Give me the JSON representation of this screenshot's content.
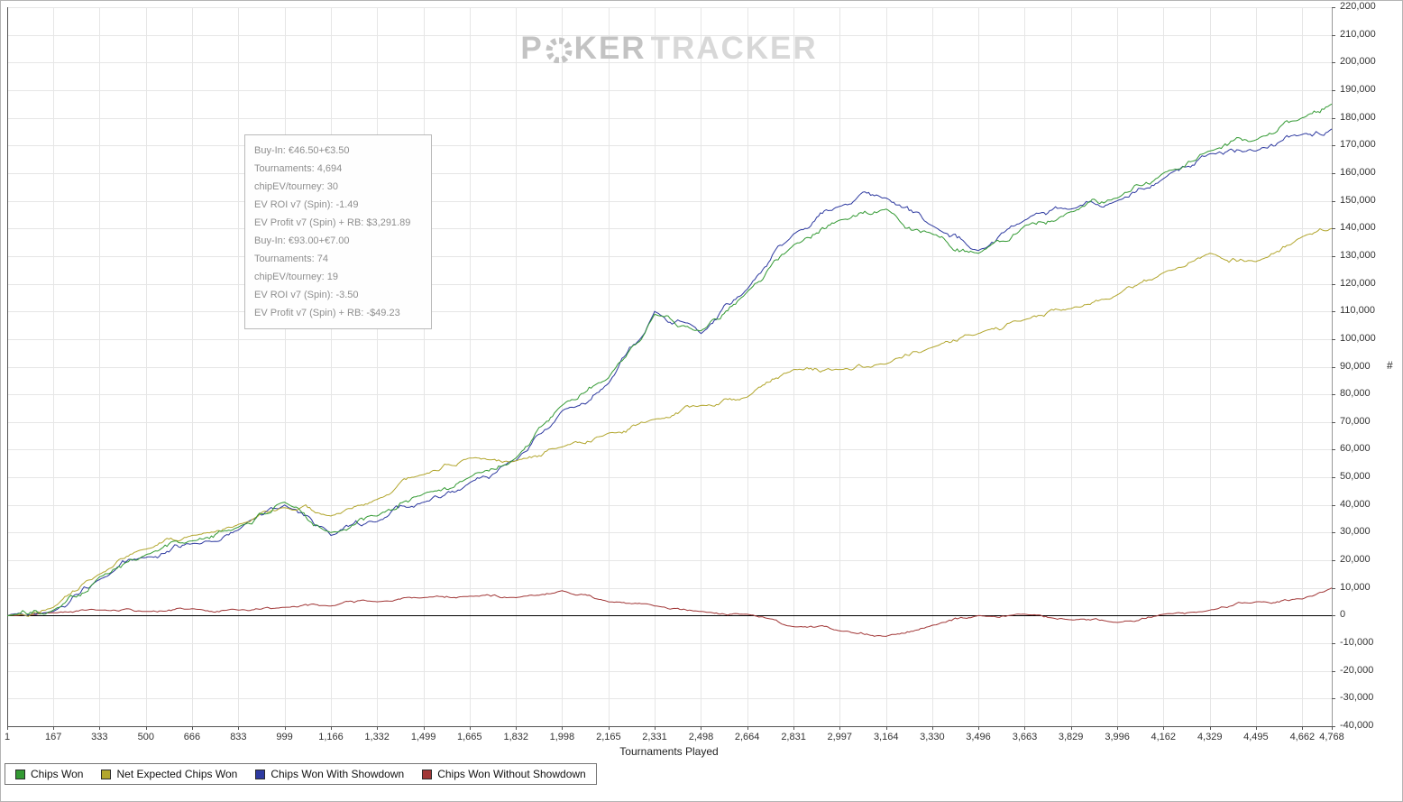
{
  "watermark": {
    "p": "P",
    "ker": "KER",
    "tracker": "TRACKER"
  },
  "tooltip": {
    "lines": [
      "Buy-In: €46.50+€3.50",
      "Tournaments: 4,694",
      "chipEV/tourney: 30",
      "EV ROI v7 (Spin): -1.49",
      "EV Profit v7 (Spin) + RB: $3,291.89",
      "Buy-In: €93.00+€7.00",
      "Tournaments: 74",
      "chipEV/tourney: 19",
      "EV ROI v7 (Spin): -3.50",
      "EV Profit v7 (Spin) + RB: -$49.23"
    ]
  },
  "chart_data": {
    "type": "line",
    "title": "",
    "xlabel": "Tournaments Played",
    "ylabel": "#",
    "xlim": [
      1,
      4768
    ],
    "ylim": [
      -40000,
      220000
    ],
    "grid": true,
    "legend_position": "bottom-left",
    "x_ticks": [
      1,
      167,
      333,
      500,
      666,
      833,
      999,
      1166,
      1332,
      1499,
      1665,
      1832,
      1998,
      2165,
      2331,
      2498,
      2664,
      2831,
      2997,
      3164,
      3330,
      3496,
      3663,
      3829,
      3996,
      4162,
      4329,
      4495,
      4662,
      4768
    ],
    "y_ticks": [
      -40000,
      -30000,
      -20000,
      -10000,
      0,
      10000,
      20000,
      30000,
      40000,
      50000,
      60000,
      70000,
      80000,
      90000,
      100000,
      110000,
      120000,
      130000,
      140000,
      150000,
      160000,
      170000,
      180000,
      190000,
      200000,
      210000,
      220000
    ],
    "x": [
      1,
      167,
      333,
      500,
      666,
      833,
      999,
      1166,
      1332,
      1499,
      1665,
      1832,
      1998,
      2165,
      2331,
      2498,
      2664,
      2831,
      2997,
      3164,
      3330,
      3496,
      3663,
      3829,
      3996,
      4162,
      4329,
      4495,
      4662,
      4768
    ],
    "series": [
      {
        "name": "Chips Won",
        "color": "#349a34",
        "values": [
          0,
          2000,
          14000,
          22000,
          27000,
          32000,
          41000,
          30000,
          36000,
          44000,
          50000,
          57000,
          76000,
          86000,
          109000,
          103000,
          117000,
          134000,
          143000,
          147000,
          138000,
          131000,
          141000,
          146000,
          151000,
          160000,
          168000,
          172000,
          180000,
          185000
        ]
      },
      {
        "name": "Net Expected Chips Won",
        "color": "#b2a62e",
        "values": [
          0,
          3000,
          15000,
          24000,
          29000,
          33000,
          39000,
          36000,
          42000,
          51000,
          57000,
          56000,
          61000,
          66000,
          71000,
          76000,
          79000,
          89000,
          89000,
          91000,
          97000,
          102000,
          107000,
          111000,
          116000,
          124000,
          131000,
          128000,
          137000,
          140000
        ]
      },
      {
        "name": "Chips Won With Showdown",
        "color": "#2e3aa0",
        "values": [
          0,
          1500,
          13000,
          21000,
          26000,
          31000,
          40000,
          29000,
          34000,
          41000,
          48000,
          56000,
          74000,
          84000,
          110000,
          102000,
          118000,
          138000,
          148000,
          151000,
          141000,
          132000,
          143000,
          147000,
          150000,
          158000,
          167000,
          168000,
          174000,
          176000
        ]
      },
      {
        "name": "Chips Won Without Showdown",
        "color": "#a13737",
        "values": [
          0,
          1000,
          2000,
          1500,
          2500,
          2000,
          3000,
          3500,
          5000,
          6500,
          7000,
          6500,
          9000,
          5000,
          3500,
          1500,
          500,
          -4000,
          -5500,
          -7500,
          -3500,
          0,
          500,
          -1500,
          -2500,
          500,
          2000,
          5000,
          6000,
          10000
        ]
      }
    ]
  }
}
